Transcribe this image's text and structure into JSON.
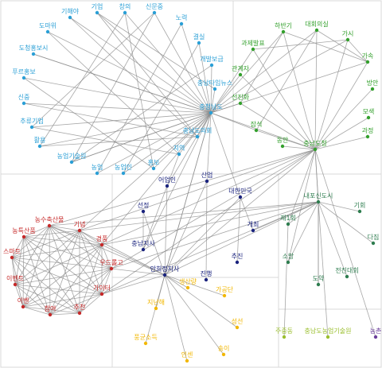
{
  "nodes": [
    {
      "label": "기업",
      "color": "#2a9fd6"
    },
    {
      "label": "창의",
      "color": "#2a9fd6"
    },
    {
      "label": "신문중",
      "color": "#2a9fd6"
    },
    {
      "label": "기해야",
      "color": "#2a9fd6"
    },
    {
      "label": "노력",
      "color": "#2a9fd6"
    },
    {
      "label": "도마위",
      "color": "#2a9fd6"
    },
    {
      "label": "결실",
      "color": "#2a9fd6"
    },
    {
      "label": "도청홍보시",
      "color": "#2a9fd6"
    },
    {
      "label": "개발보급",
      "color": "#2a9fd6"
    },
    {
      "label": "푸르홍보",
      "color": "#2a9fd6"
    },
    {
      "label": "충남타임뉴스",
      "color": "#2a9fd6"
    },
    {
      "label": "신중",
      "color": "#2a9fd6"
    },
    {
      "label": "충청남도",
      "color": "#2a9fd6"
    },
    {
      "label": "추류기업",
      "color": "#2a9fd6"
    },
    {
      "label": "충남도의회",
      "color": "#2a9fd6"
    },
    {
      "label": "활용",
      "color": "#2a9fd6"
    },
    {
      "label": "농업기술원",
      "color": "#2a9fd6"
    },
    {
      "label": "지역",
      "color": "#2a9fd6"
    },
    {
      "label": "홍보",
      "color": "#2a9fd6"
    },
    {
      "label": "농업",
      "color": "#2a9fd6"
    },
    {
      "label": "농업인",
      "color": "#2a9fd6"
    },
    {
      "label": "하반기",
      "color": "#33a02c"
    },
    {
      "label": "대회의실",
      "color": "#33a02c"
    },
    {
      "label": "가시",
      "color": "#33a02c"
    },
    {
      "label": "과제발표",
      "color": "#33a02c"
    },
    {
      "label": "가속",
      "color": "#33a02c"
    },
    {
      "label": "관계자",
      "color": "#33a02c"
    },
    {
      "label": "방안",
      "color": "#33a02c"
    },
    {
      "label": "선진화",
      "color": "#33a02c"
    },
    {
      "label": "모색",
      "color": "#33a02c"
    },
    {
      "label": "잠석",
      "color": "#33a02c"
    },
    {
      "label": "과정",
      "color": "#33a02c"
    },
    {
      "label": "동안",
      "color": "#33a02c"
    },
    {
      "label": "충남도청",
      "color": "#33a02c"
    },
    {
      "label": "내포신도시",
      "color": "#2e7d4f"
    },
    {
      "label": "기회",
      "color": "#2e7d4f"
    },
    {
      "label": "제1회",
      "color": "#2e7d4f"
    },
    {
      "label": "다짐",
      "color": "#2e7d4f"
    },
    {
      "label": "소망",
      "color": "#2e7d4f"
    },
    {
      "label": "전진대회",
      "color": "#2e7d4f"
    },
    {
      "label": "도약",
      "color": "#2e7d4f"
    },
    {
      "label": "어업인",
      "color": "#1a237e"
    },
    {
      "label": "산업",
      "color": "#1a237e"
    },
    {
      "label": "대한민국",
      "color": "#1a237e"
    },
    {
      "label": "선정",
      "color": "#1a237e"
    },
    {
      "label": "개최",
      "color": "#1a237e"
    },
    {
      "label": "충남지사",
      "color": "#1a237e"
    },
    {
      "label": "추진",
      "color": "#1a237e"
    },
    {
      "label": "안희정지사",
      "color": "#1a237e"
    },
    {
      "label": "진행",
      "color": "#1a237e"
    },
    {
      "label": "생산량",
      "color": "#f2b700"
    },
    {
      "label": "가공단",
      "color": "#f2b700"
    },
    {
      "label": "지난해",
      "color": "#f2b700"
    },
    {
      "label": "성선",
      "color": "#f2b700"
    },
    {
      "label": "풍균소득",
      "color": "#f2b700"
    },
    {
      "label": "송이",
      "color": "#f2b700"
    },
    {
      "label": "인센",
      "color": "#f2b700"
    },
    {
      "label": "주중동",
      "color": "#9bbf2e"
    },
    {
      "label": "충남도농업기술원",
      "color": "#9bbf2e"
    },
    {
      "label": "농촌",
      "color": "#6a3d9a"
    },
    {
      "label": "농수축산물",
      "color": "#c62828"
    },
    {
      "label": "기념",
      "color": "#c62828"
    },
    {
      "label": "농특산품",
      "color": "#c62828"
    },
    {
      "label": "경품",
      "color": "#c62828"
    },
    {
      "label": "스마트",
      "color": "#c62828"
    },
    {
      "label": "우드롤고",
      "color": "#c62828"
    },
    {
      "label": "이벤트",
      "color": "#c62828"
    },
    {
      "label": "가이터",
      "color": "#c62828"
    },
    {
      "label": "이벤",
      "color": "#c62828"
    },
    {
      "label": "참여",
      "color": "#c62828"
    },
    {
      "label": "추천",
      "color": "#c62828"
    }
  ]
}
